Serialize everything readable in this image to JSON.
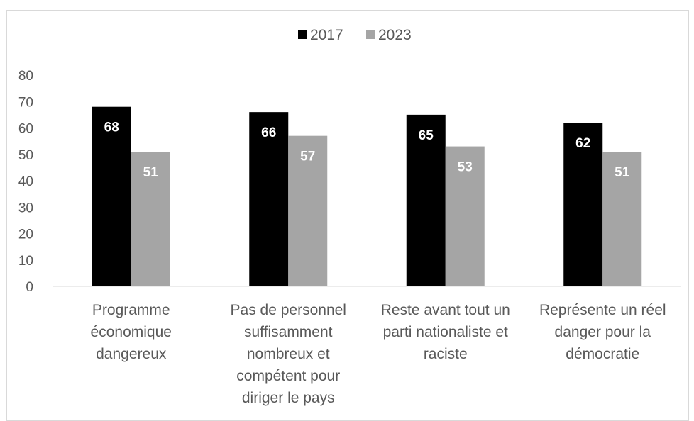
{
  "chart_data": {
    "type": "bar",
    "title": "",
    "xlabel": "",
    "ylabel": "",
    "ylim": [
      0,
      80
    ],
    "yticks": [
      0,
      10,
      20,
      30,
      40,
      50,
      60,
      70,
      80
    ],
    "grid": false,
    "legend_position": "top",
    "categories": [
      [
        "Programme",
        "économique",
        "dangereux"
      ],
      [
        "Pas de personnel",
        "suffisamment",
        "nombreux et",
        "compétent pour",
        "diriger le pays"
      ],
      [
        "Reste avant tout un",
        "parti nationaliste et",
        "raciste"
      ],
      [
        "Représente un réel",
        "danger pour la",
        "démocratie"
      ]
    ],
    "series": [
      {
        "name": "2017",
        "color": "#000000",
        "values": [
          68,
          66,
          65,
          62
        ]
      },
      {
        "name": "2023",
        "color": "#a5a5a5",
        "values": [
          51,
          57,
          53,
          51
        ]
      }
    ]
  }
}
